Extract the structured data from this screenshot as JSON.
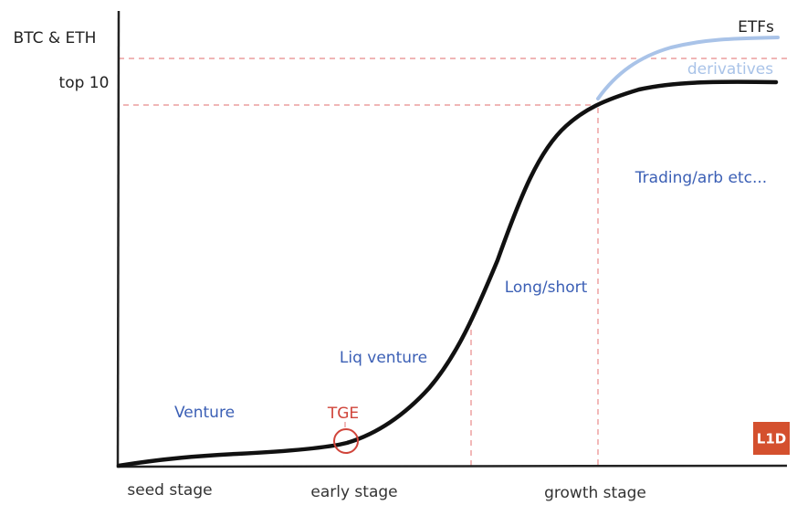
{
  "y_labels": [
    "BTC & ETH",
    "top 10"
  ],
  "x_labels": [
    "seed stage",
    "early stage",
    "growth stage"
  ],
  "curve_labels": {
    "upper": "ETFs",
    "lower": "derivatives"
  },
  "annotations": [
    "Trading/arb etc...",
    "Long/short",
    "Liq venture",
    "Venture"
  ],
  "marker": "TGE",
  "logo": "L1D"
}
